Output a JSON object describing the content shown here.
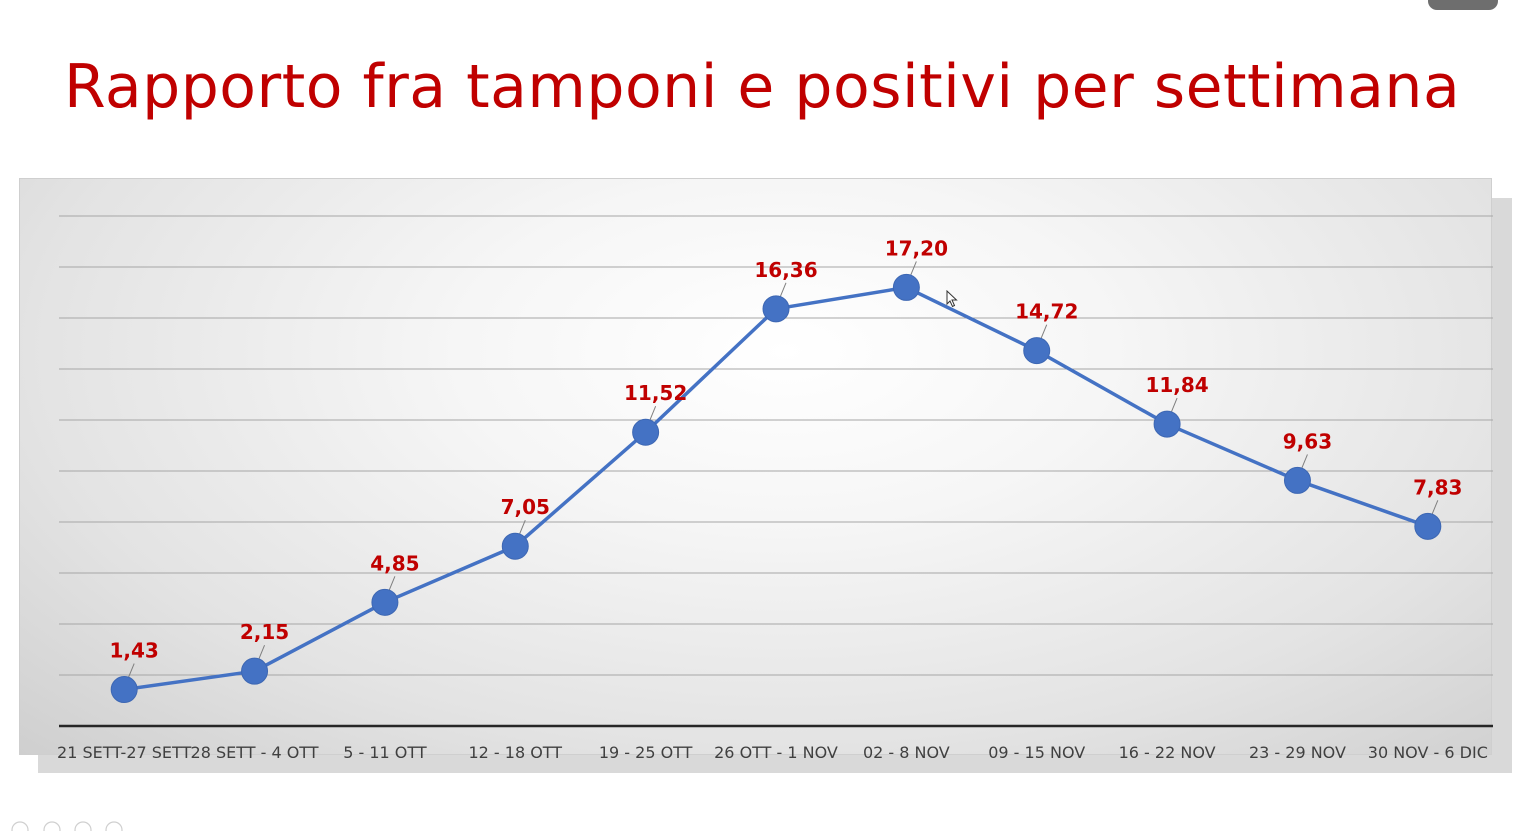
{
  "slide": {
    "title": "Rapporto fra tamponi e positivi per settimana"
  },
  "colors": {
    "title": "#c00000",
    "series_line": "#4472c4",
    "data_labels": "#c00000",
    "tick_labels": "#404040",
    "background": "#ffffff"
  },
  "icons": {
    "cursor": "mouse-pointer-icon"
  },
  "chart_data": {
    "type": "line",
    "title": "",
    "xlabel": "",
    "ylabel": "",
    "categories": [
      "21 SETT-27 SETT",
      "28 SETT - 4 OTT",
      "5 - 11 OTT",
      "12 - 18 OTT",
      "19 - 25 OTT",
      "26 OTT - 1 NOV",
      "02 - 8 NOV",
      "09 - 15 NOV",
      "16 - 22 NOV",
      "23 - 29 NOV",
      "30 NOV - 6 DIC"
    ],
    "values": [
      1.43,
      2.15,
      4.85,
      7.05,
      11.52,
      16.36,
      17.2,
      14.72,
      11.84,
      9.63,
      7.83
    ],
    "value_labels": [
      "1,43",
      "2,15",
      "4,85",
      "7,05",
      "11,52",
      "16,36",
      "17,20",
      "14,72",
      "11,84",
      "9,63",
      "7,83"
    ],
    "ylim": [
      0,
      20
    ],
    "y_gridlines": 10,
    "y_tick_labels_shown": false,
    "grid": true,
    "legend": "none",
    "markers": "circle"
  }
}
